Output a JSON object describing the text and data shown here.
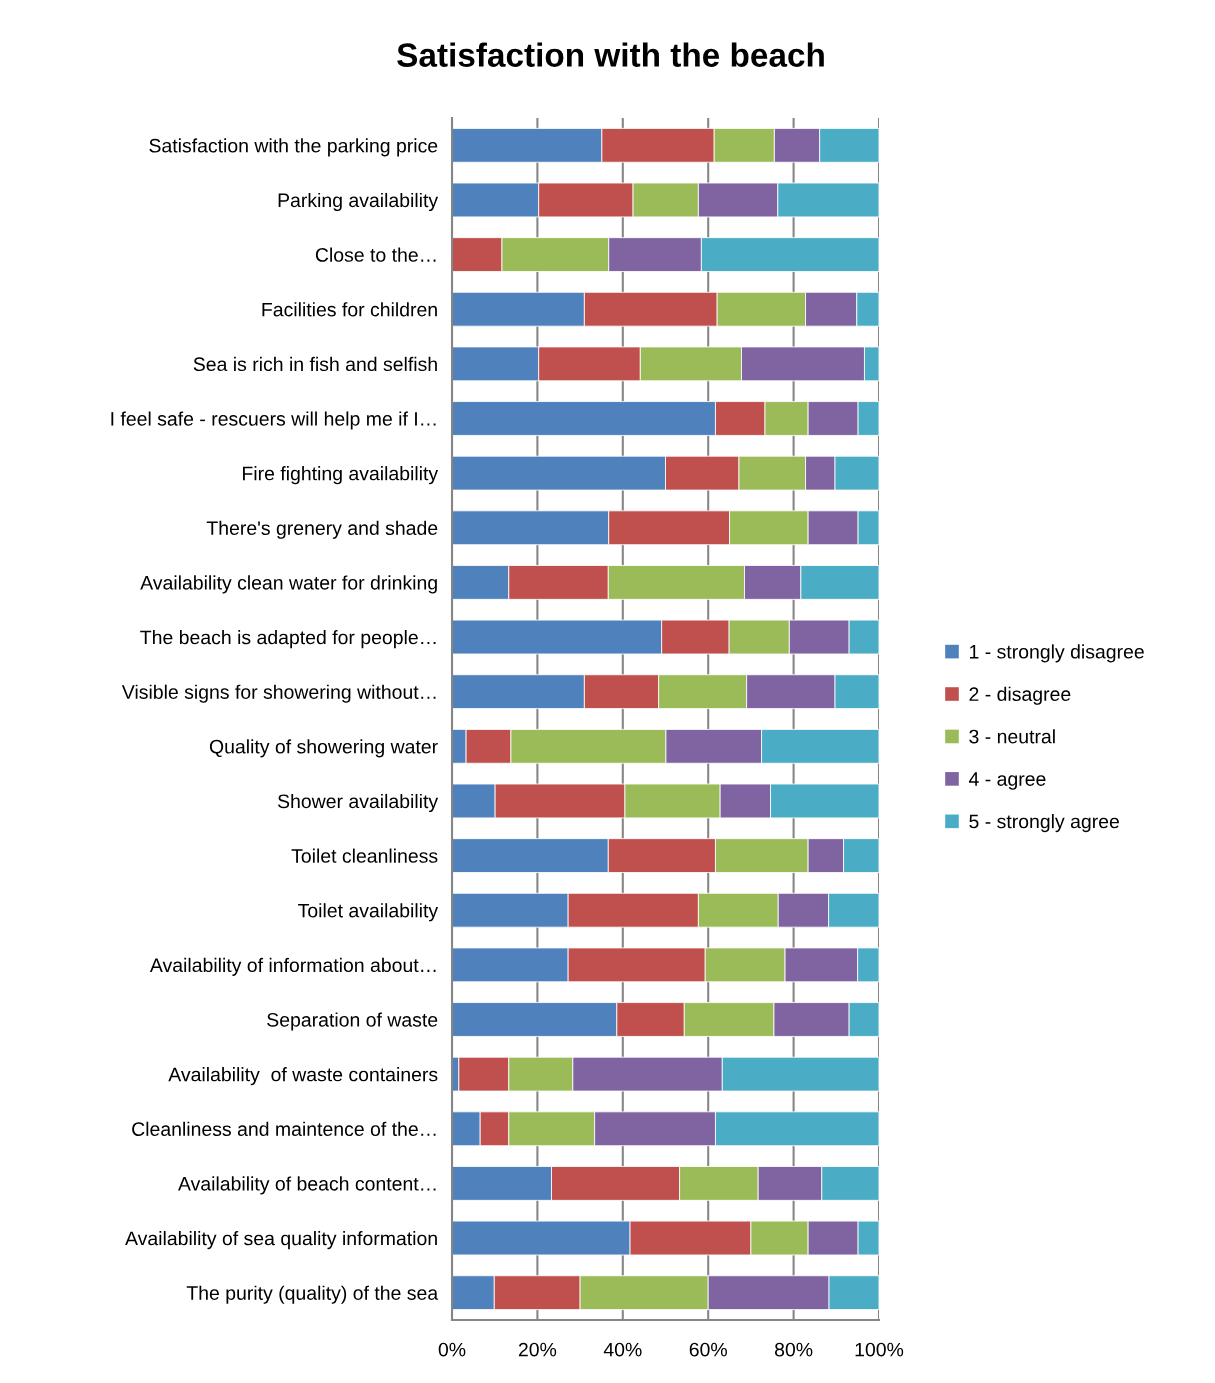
{
  "chart_data": {
    "type": "bar",
    "orientation": "horizontal",
    "stacked": true,
    "title": "Satisfaction with the beach",
    "categories": [
      "Satisfaction with the parking price",
      "Parking availability",
      "Close to the…",
      "Facilities for children",
      "Sea is rich in fish and selfish",
      "I feel safe - rescuers will help me if I…",
      "Fire fighting availability",
      "There's grenery and shade",
      "Availability clean water for drinking",
      "The beach is adapted for people…",
      "Visible signs for showering without…",
      "Quality of showering water",
      "Shower availability",
      "Toilet cleanliness",
      "Toilet availability",
      "Availability of information about…",
      "Separation of waste",
      "Availability  of waste containers",
      "Cleanliness and maintence of the…",
      "Availability of beach content…",
      "Availability of sea quality information",
      "The purity (quality) of the sea"
    ],
    "series": [
      {
        "name": "1 - strongly disagree",
        "color": "#4f81bd",
        "values": [
          35.1,
          20.3,
          0,
          31.0,
          20.3,
          61.7,
          50.0,
          36.7,
          13.3,
          49.1,
          31.0,
          3.3,
          10.1,
          36.6,
          27.2,
          27.2,
          38.6,
          1.6,
          6.6,
          23.3,
          41.7,
          9.9
        ]
      },
      {
        "name": "2 - disagree",
        "color": "#c0504d",
        "values": [
          26.3,
          22.1,
          11.7,
          31.1,
          23.8,
          11.6,
          17.2,
          28.3,
          23.3,
          15.8,
          17.4,
          10.5,
          30.4,
          25.1,
          30.5,
          32.1,
          15.8,
          11.7,
          6.7,
          30.0,
          28.3,
          20.1
        ]
      },
      {
        "name": "3 - neutral",
        "color": "#9bbb59",
        "values": [
          14.1,
          15.3,
          25.0,
          20.7,
          23.7,
          10.1,
          15.6,
          18.4,
          31.9,
          14.1,
          20.6,
          36.3,
          22.3,
          21.7,
          18.7,
          18.7,
          21.0,
          15.0,
          20.1,
          18.4,
          13.4,
          30.0
        ]
      },
      {
        "name": "4 - agree",
        "color": "#8064a2",
        "values": [
          10.6,
          18.6,
          21.7,
          12.0,
          28.8,
          11.7,
          6.9,
          11.7,
          13.2,
          14.0,
          20.7,
          22.4,
          11.8,
          8.3,
          11.8,
          17.0,
          17.6,
          35.0,
          28.3,
          14.9,
          11.7,
          28.3
        ]
      },
      {
        "name": "5 - strongly agree",
        "color": "#4bacc6",
        "values": [
          13.9,
          23.7,
          41.6,
          5.2,
          3.4,
          4.9,
          10.3,
          4.9,
          18.3,
          7.0,
          10.3,
          27.5,
          25.4,
          8.3,
          11.8,
          5.0,
          7.0,
          36.7,
          38.3,
          13.4,
          4.9,
          11.7
        ]
      }
    ],
    "xlim": [
      0,
      100
    ],
    "xticks": [
      {
        "value": 0,
        "label": "0%"
      },
      {
        "value": 20,
        "label": "20%"
      },
      {
        "value": 40,
        "label": "40%"
      },
      {
        "value": 60,
        "label": "60%"
      },
      {
        "value": 80,
        "label": "80%"
      },
      {
        "value": 100,
        "label": "100%"
      }
    ],
    "grid": "x",
    "legend": "right"
  }
}
